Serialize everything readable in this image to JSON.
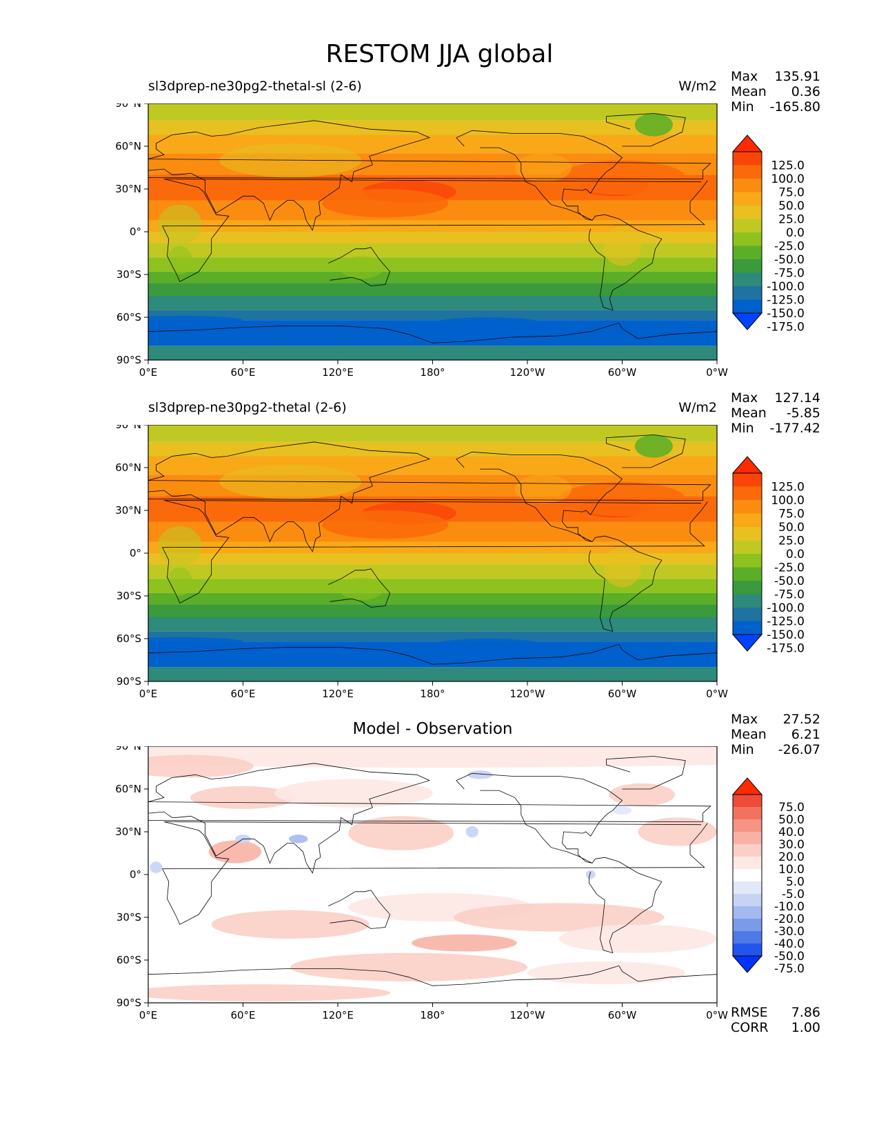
{
  "figure": {
    "title": "RESTOM JJA global"
  },
  "axes": {
    "lat_ticks": [
      "90°N",
      "60°N",
      "30°N",
      "0°",
      "30°S",
      "60°S",
      "90°S"
    ],
    "lon_ticks": [
      "0°E",
      "60°E",
      "120°E",
      "180°",
      "120°W",
      "60°W",
      "0°W"
    ]
  },
  "colorbars": {
    "main": {
      "colors": [
        "#0044ff",
        "#0060cc",
        "#1e73a0",
        "#2e8a7a",
        "#3a9a3c",
        "#5bae28",
        "#8ec21e",
        "#c0c922",
        "#e8c020",
        "#f9a818",
        "#fa8c10",
        "#fa6a0a",
        "#f94608",
        "#ff2a00"
      ],
      "labels": [
        "125.0",
        "100.0",
        "75.0",
        "50.0",
        "25.0",
        "0.0",
        "-25.0",
        "-50.0",
        "-75.0",
        "-100.0",
        "-125.0",
        "-150.0",
        "-175.0"
      ]
    },
    "diff": {
      "colors": [
        "#0033ff",
        "#2255ee",
        "#4d7ae6",
        "#7a9ce8",
        "#a3baf0",
        "#c6d3f5",
        "#e2e8fa",
        "#ffffff",
        "#fde8e4",
        "#fbcfc6",
        "#f8b2a5",
        "#f59484",
        "#f27260",
        "#f04a38",
        "#ff2a00"
      ],
      "labels": [
        "75.0",
        "50.0",
        "40.0",
        "30.0",
        "20.0",
        "10.0",
        "5.0",
        "-5.0",
        "-10.0",
        "-20.0",
        "-30.0",
        "-40.0",
        "-50.0",
        "-75.0"
      ]
    }
  },
  "panels": [
    {
      "title": "sl3dprep-ne30pg2-thetal-sl (2-6)",
      "units": "W/m2",
      "stats": {
        "max_label": "Max",
        "max": "135.91",
        "mean_label": "Mean",
        "mean": "0.36",
        "min_label": "Min",
        "min": "-165.80"
      },
      "colorbar": "main"
    },
    {
      "title": "sl3dprep-ne30pg2-thetal (2-6)",
      "units": "W/m2",
      "stats": {
        "max_label": "Max",
        "max": "127.14",
        "mean_label": "Mean",
        "mean": "-5.85",
        "min_label": "Min",
        "min": "-177.42"
      },
      "colorbar": "main"
    },
    {
      "title": "Model - Observation",
      "units": "",
      "stats": {
        "max_label": "Max",
        "max": "27.52",
        "mean_label": "Mean",
        "mean": "6.21",
        "min_label": "Min",
        "min": "-26.07"
      },
      "footer": {
        "rmse_label": "RMSE",
        "rmse": "7.86",
        "corr_label": "CORR",
        "corr": "1.00"
      },
      "colorbar": "diff"
    }
  ]
}
